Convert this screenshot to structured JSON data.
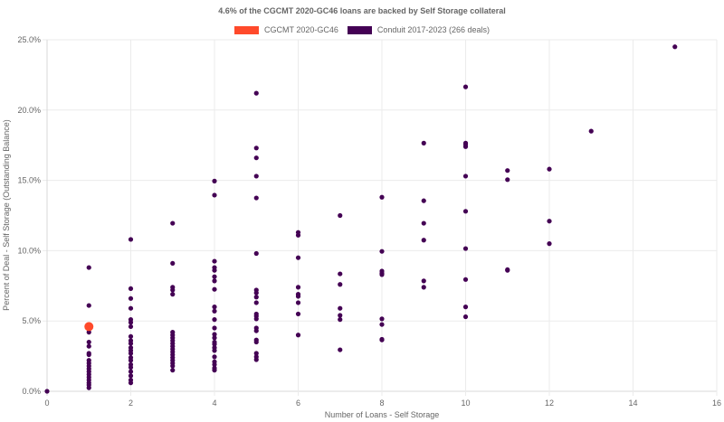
{
  "title": "4.6% of the CGCMT 2020-GC46 loans are backed by Self Storage collateral",
  "legend": [
    {
      "label": "CGCMT 2020-GC46",
      "color": "#ff4a2b"
    },
    {
      "label": "Conduit 2017-2023 (266 deals)",
      "color": "#440154"
    }
  ],
  "chart_data": {
    "type": "scatter",
    "title": "4.6% of the CGCMT 2020-GC46 loans are backed by Self Storage collateral",
    "xlabel": "Number of Loans - Self Storage",
    "ylabel": "Percent of Deal - Self Storage (Outstanding Balance)",
    "xlim": [
      0,
      16
    ],
    "ylim": [
      0,
      25
    ],
    "x_ticks": [
      "0",
      "2",
      "4",
      "6",
      "8",
      "10",
      "12",
      "14",
      "16"
    ],
    "y_ticks": [
      "0.0%",
      "5.0%",
      "10.0%",
      "15.0%",
      "20.0%",
      "25.0%"
    ],
    "grid": true,
    "legend_position": "top",
    "series": [
      {
        "name": "CGCMT 2020-GC46",
        "color": "#ff4a2b",
        "points": [
          [
            1,
            4.6
          ]
        ]
      },
      {
        "name": "Conduit 2017-2023 (266 deals)",
        "color": "#440154",
        "points": [
          [
            0,
            0.0
          ],
          [
            1,
            8.8
          ],
          [
            1,
            6.1
          ],
          [
            1,
            4.2
          ],
          [
            1,
            3.5
          ],
          [
            1,
            3.2
          ],
          [
            1,
            2.7
          ],
          [
            1,
            2.6
          ],
          [
            1,
            2.2
          ],
          [
            1,
            2.0
          ],
          [
            1,
            1.8
          ],
          [
            1,
            1.6
          ],
          [
            1,
            1.4
          ],
          [
            1,
            1.2
          ],
          [
            1,
            1.0
          ],
          [
            1,
            0.8
          ],
          [
            1,
            0.6
          ],
          [
            1,
            0.45
          ],
          [
            1,
            0.25
          ],
          [
            2,
            10.8
          ],
          [
            2,
            7.3
          ],
          [
            2,
            6.6
          ],
          [
            2,
            5.9
          ],
          [
            2,
            5.1
          ],
          [
            2,
            4.9
          ],
          [
            2,
            4.6
          ],
          [
            2,
            3.9
          ],
          [
            2,
            3.6
          ],
          [
            2,
            3.4
          ],
          [
            2,
            3.1
          ],
          [
            2,
            2.9
          ],
          [
            2,
            2.7
          ],
          [
            2,
            2.4
          ],
          [
            2,
            2.2
          ],
          [
            2,
            1.9
          ],
          [
            2,
            1.7
          ],
          [
            2,
            1.4
          ],
          [
            2,
            1.1
          ],
          [
            2,
            0.8
          ],
          [
            2,
            0.6
          ],
          [
            3,
            11.95
          ],
          [
            3,
            9.1
          ],
          [
            3,
            7.4
          ],
          [
            3,
            7.2
          ],
          [
            3,
            6.9
          ],
          [
            3,
            4.2
          ],
          [
            3,
            4.0
          ],
          [
            3,
            3.8
          ],
          [
            3,
            3.6
          ],
          [
            3,
            3.4
          ],
          [
            3,
            3.2
          ],
          [
            3,
            3.0
          ],
          [
            3,
            2.8
          ],
          [
            3,
            2.6
          ],
          [
            3,
            2.4
          ],
          [
            3,
            2.2
          ],
          [
            3,
            2.0
          ],
          [
            3,
            1.8
          ],
          [
            3,
            1.5
          ],
          [
            4,
            14.95
          ],
          [
            4,
            13.95
          ],
          [
            4,
            9.25
          ],
          [
            4,
            8.8
          ],
          [
            4,
            8.6
          ],
          [
            4,
            8.15
          ],
          [
            4,
            7.85
          ],
          [
            4,
            7.25
          ],
          [
            4,
            6.0
          ],
          [
            4,
            5.7
          ],
          [
            4,
            5.1
          ],
          [
            4,
            4.5
          ],
          [
            4,
            4.05
          ],
          [
            4,
            3.8
          ],
          [
            4,
            3.5
          ],
          [
            4,
            3.35
          ],
          [
            4,
            3.1
          ],
          [
            4,
            2.9
          ],
          [
            4,
            2.45
          ],
          [
            4,
            2.1
          ],
          [
            4,
            1.9
          ],
          [
            4,
            1.65
          ],
          [
            4,
            1.5
          ],
          [
            5,
            21.2
          ],
          [
            5,
            17.3
          ],
          [
            5,
            16.6
          ],
          [
            5,
            15.3
          ],
          [
            5,
            13.75
          ],
          [
            5,
            9.8
          ],
          [
            5,
            7.2
          ],
          [
            5,
            7.0
          ],
          [
            5,
            6.7
          ],
          [
            5,
            6.3
          ],
          [
            5,
            5.5
          ],
          [
            5,
            5.35
          ],
          [
            5,
            5.15
          ],
          [
            5,
            4.5
          ],
          [
            5,
            4.3
          ],
          [
            5,
            3.65
          ],
          [
            5,
            3.5
          ],
          [
            5,
            2.7
          ],
          [
            5,
            2.45
          ],
          [
            5,
            2.25
          ],
          [
            6,
            11.3
          ],
          [
            6,
            11.1
          ],
          [
            6,
            9.5
          ],
          [
            6,
            7.4
          ],
          [
            6,
            6.9
          ],
          [
            6,
            6.75
          ],
          [
            6,
            6.3
          ],
          [
            6,
            5.5
          ],
          [
            6,
            4.0
          ],
          [
            7,
            12.5
          ],
          [
            7,
            8.35
          ],
          [
            7,
            7.6
          ],
          [
            7,
            5.9
          ],
          [
            7,
            5.4
          ],
          [
            7,
            5.1
          ],
          [
            7,
            2.95
          ],
          [
            8,
            13.8
          ],
          [
            8,
            9.95
          ],
          [
            8,
            8.55
          ],
          [
            8,
            8.4
          ],
          [
            8,
            8.3
          ],
          [
            8,
            5.15
          ],
          [
            8,
            4.75
          ],
          [
            8,
            3.7
          ],
          [
            8,
            3.65
          ],
          [
            9,
            17.65
          ],
          [
            9,
            13.55
          ],
          [
            9,
            11.95
          ],
          [
            9,
            10.75
          ],
          [
            9,
            7.85
          ],
          [
            9,
            7.4
          ],
          [
            10,
            21.65
          ],
          [
            10,
            17.65
          ],
          [
            10,
            17.55
          ],
          [
            10,
            17.4
          ],
          [
            10,
            15.3
          ],
          [
            10,
            12.8
          ],
          [
            10,
            10.15
          ],
          [
            10,
            7.95
          ],
          [
            10,
            6.0
          ],
          [
            10,
            5.3
          ],
          [
            11,
            15.7
          ],
          [
            11,
            15.05
          ],
          [
            11,
            8.65
          ],
          [
            11,
            8.6
          ],
          [
            12,
            15.8
          ],
          [
            12,
            12.1
          ],
          [
            12,
            10.5
          ],
          [
            13,
            18.5
          ],
          [
            15,
            24.5
          ]
        ]
      }
    ]
  }
}
